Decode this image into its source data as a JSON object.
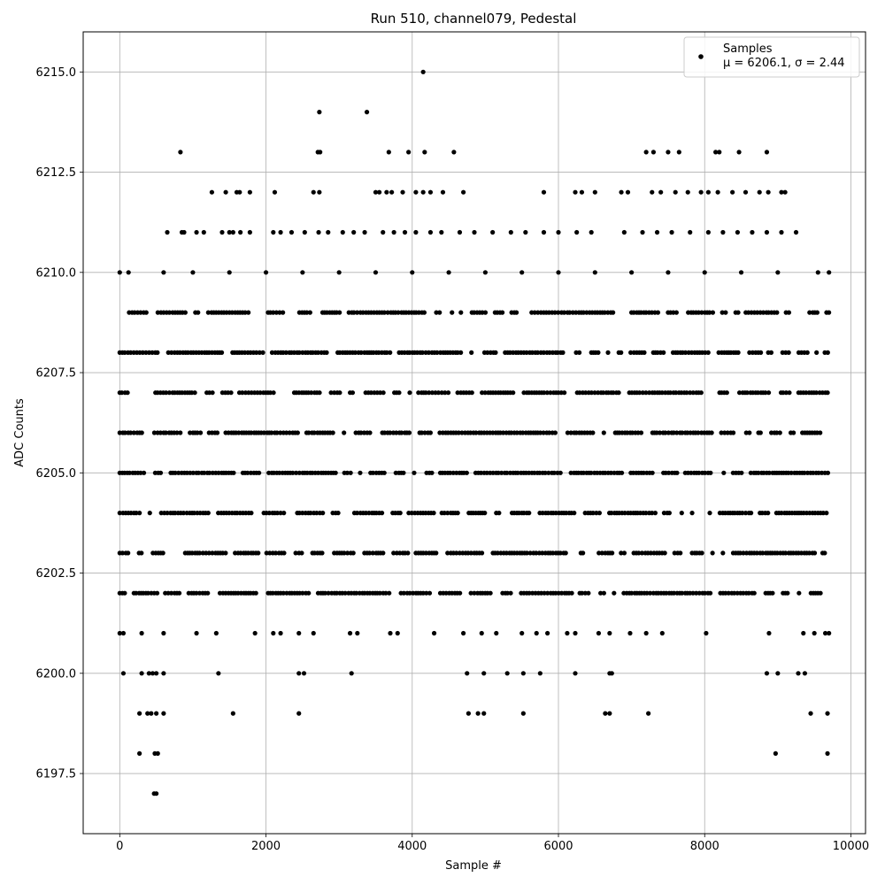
{
  "chart_data": {
    "type": "scatter",
    "title": "Run 510, channel079, Pedestal",
    "xlabel": "Sample #",
    "ylabel": "ADC Counts",
    "xlim": [
      -500,
      10200
    ],
    "ylim": [
      6196.0,
      6216.0
    ],
    "x_ticks": [
      0,
      2000,
      4000,
      6000,
      8000,
      10000
    ],
    "x_tick_labels": [
      "0",
      "2000",
      "4000",
      "6000",
      "8000",
      "10000"
    ],
    "y_ticks": [
      6197.5,
      6200.0,
      6202.5,
      6205.0,
      6207.5,
      6210.0,
      6212.5,
      6215.0
    ],
    "y_tick_labels": [
      "6197.5",
      "6200.0",
      "6202.5",
      "6205.0",
      "6207.5",
      "6210.0",
      "6212.5",
      "6215.0"
    ],
    "grid": true,
    "marker_color": "#000000",
    "legend": {
      "placement": "top-right",
      "entries": [
        {
          "label": "Samples",
          "stat_line": "μ = 6206.1, σ = 2.44"
        }
      ]
    },
    "series": [
      {
        "name": "Samples",
        "n_points": 9700,
        "points": [
          [
            4150,
            6215
          ],
          [
            2730,
            6214
          ],
          [
            3380,
            6214
          ],
          [
            830,
            6213
          ],
          [
            2710,
            6213
          ],
          [
            2740,
            6213
          ],
          [
            3680,
            6213
          ],
          [
            3950,
            6213
          ],
          [
            4170,
            6213
          ],
          [
            4570,
            6213
          ],
          [
            7200,
            6213
          ],
          [
            7300,
            6213
          ],
          [
            7500,
            6213
          ],
          [
            7650,
            6213
          ],
          [
            8150,
            6213
          ],
          [
            8200,
            6213
          ],
          [
            8470,
            6213
          ],
          [
            8850,
            6213
          ],
          [
            1260,
            6212
          ],
          [
            1450,
            6212
          ],
          [
            1600,
            6212
          ],
          [
            1640,
            6212
          ],
          [
            1780,
            6212
          ],
          [
            2120,
            6212
          ],
          [
            2650,
            6212
          ],
          [
            2730,
            6212
          ],
          [
            3500,
            6212
          ],
          [
            3550,
            6212
          ],
          [
            3650,
            6212
          ],
          [
            3720,
            6212
          ],
          [
            3870,
            6212
          ],
          [
            4050,
            6212
          ],
          [
            4150,
            6212
          ],
          [
            4250,
            6212
          ],
          [
            4420,
            6212
          ],
          [
            4700,
            6212
          ],
          [
            5800,
            6212
          ],
          [
            6230,
            6212
          ],
          [
            6320,
            6212
          ],
          [
            6500,
            6212
          ],
          [
            6860,
            6212
          ],
          [
            6950,
            6212
          ],
          [
            7280,
            6212
          ],
          [
            7400,
            6212
          ],
          [
            7600,
            6212
          ],
          [
            7770,
            6212
          ],
          [
            7950,
            6212
          ],
          [
            8050,
            6212
          ],
          [
            8180,
            6212
          ],
          [
            8380,
            6212
          ],
          [
            8560,
            6212
          ],
          [
            8750,
            6212
          ],
          [
            8870,
            6212
          ],
          [
            9050,
            6212
          ],
          [
            9100,
            6212
          ],
          [
            650,
            6211
          ],
          [
            850,
            6211
          ],
          [
            880,
            6211
          ],
          [
            1050,
            6211
          ],
          [
            1150,
            6211
          ],
          [
            1400,
            6211
          ],
          [
            1500,
            6211
          ],
          [
            1550,
            6211
          ],
          [
            1650,
            6211
          ],
          [
            1780,
            6211
          ],
          [
            2100,
            6211
          ],
          [
            2200,
            6211
          ],
          [
            2350,
            6211
          ],
          [
            2530,
            6211
          ],
          [
            2720,
            6211
          ],
          [
            2850,
            6211
          ],
          [
            3050,
            6211
          ],
          [
            3200,
            6211
          ],
          [
            3350,
            6211
          ],
          [
            3600,
            6211
          ],
          [
            3750,
            6211
          ],
          [
            3900,
            6211
          ],
          [
            4050,
            6211
          ],
          [
            4250,
            6211
          ],
          [
            4400,
            6211
          ],
          [
            4650,
            6211
          ],
          [
            4850,
            6211
          ],
          [
            5100,
            6211
          ],
          [
            5350,
            6211
          ],
          [
            5550,
            6211
          ],
          [
            5800,
            6211
          ],
          [
            6000,
            6211
          ],
          [
            6250,
            6211
          ],
          [
            6450,
            6211
          ],
          [
            6900,
            6211
          ],
          [
            7150,
            6211
          ],
          [
            7350,
            6211
          ],
          [
            7550,
            6211
          ],
          [
            7800,
            6211
          ],
          [
            8050,
            6211
          ],
          [
            8250,
            6211
          ],
          [
            8450,
            6211
          ],
          [
            8650,
            6211
          ],
          [
            8850,
            6211
          ],
          [
            9050,
            6211
          ],
          [
            9250,
            6211
          ],
          [
            0,
            6210
          ],
          [
            120,
            6210
          ],
          [
            600,
            6210
          ],
          [
            1000,
            6210
          ],
          [
            1500,
            6210
          ],
          [
            2000,
            6210
          ],
          [
            2500,
            6210
          ],
          [
            3000,
            6210
          ],
          [
            3500,
            6210
          ],
          [
            4000,
            6210
          ],
          [
            4500,
            6210
          ],
          [
            5000,
            6210
          ],
          [
            5500,
            6210
          ],
          [
            6000,
            6210
          ],
          [
            6500,
            6210
          ],
          [
            7000,
            6210
          ],
          [
            7500,
            6210
          ],
          [
            8000,
            6210
          ],
          [
            8500,
            6210
          ],
          [
            9000,
            6210
          ],
          [
            9550,
            6210
          ],
          [
            9700,
            6210
          ],
          [
            0,
            6201
          ],
          [
            50,
            6201
          ],
          [
            300,
            6201
          ],
          [
            600,
            6201
          ],
          [
            1050,
            6201
          ],
          [
            1320,
            6201
          ],
          [
            1850,
            6201
          ],
          [
            2100,
            6201
          ],
          [
            2200,
            6201
          ],
          [
            2450,
            6201
          ],
          [
            2650,
            6201
          ],
          [
            3150,
            6201
          ],
          [
            3250,
            6201
          ],
          [
            3700,
            6201
          ],
          [
            3800,
            6201
          ],
          [
            4300,
            6201
          ],
          [
            4700,
            6201
          ],
          [
            4950,
            6201
          ],
          [
            5150,
            6201
          ],
          [
            5500,
            6201
          ],
          [
            5700,
            6201
          ],
          [
            5850,
            6201
          ],
          [
            6120,
            6201
          ],
          [
            6230,
            6201
          ],
          [
            6550,
            6201
          ],
          [
            6700,
            6201
          ],
          [
            6980,
            6201
          ],
          [
            7200,
            6201
          ],
          [
            7420,
            6201
          ],
          [
            8020,
            6201
          ],
          [
            8880,
            6201
          ],
          [
            9350,
            6201
          ],
          [
            9500,
            6201
          ],
          [
            9650,
            6201
          ],
          [
            9700,
            6201
          ],
          [
            50,
            6200
          ],
          [
            300,
            6200
          ],
          [
            400,
            6200
          ],
          [
            450,
            6200
          ],
          [
            500,
            6200
          ],
          [
            600,
            6200
          ],
          [
            1350,
            6200
          ],
          [
            2450,
            6200
          ],
          [
            2520,
            6200
          ],
          [
            3170,
            6200
          ],
          [
            4750,
            6200
          ],
          [
            4980,
            6200
          ],
          [
            5300,
            6200
          ],
          [
            5520,
            6200
          ],
          [
            5750,
            6200
          ],
          [
            6230,
            6200
          ],
          [
            6700,
            6200
          ],
          [
            6730,
            6200
          ],
          [
            8850,
            6200
          ],
          [
            9000,
            6200
          ],
          [
            9280,
            6200
          ],
          [
            9370,
            6200
          ],
          [
            270,
            6199
          ],
          [
            380,
            6199
          ],
          [
            430,
            6199
          ],
          [
            500,
            6199
          ],
          [
            600,
            6199
          ],
          [
            1550,
            6199
          ],
          [
            2450,
            6199
          ],
          [
            4770,
            6199
          ],
          [
            4900,
            6199
          ],
          [
            4980,
            6199
          ],
          [
            5520,
            6199
          ],
          [
            6640,
            6199
          ],
          [
            6700,
            6199
          ],
          [
            7230,
            6199
          ],
          [
            9450,
            6199
          ],
          [
            9680,
            6199
          ],
          [
            270,
            6198
          ],
          [
            480,
            6198
          ],
          [
            520,
            6198
          ],
          [
            8970,
            6198
          ],
          [
            9680,
            6198
          ],
          [
            470,
            6197
          ],
          [
            500,
            6197
          ]
        ],
        "dense_levels": [
          {
            "y": 6209,
            "x_range": [
              0,
              9700
            ]
          },
          {
            "y": 6208,
            "x_range": [
              0,
              9700
            ]
          },
          {
            "y": 6207,
            "x_range": [
              0,
              9700
            ]
          },
          {
            "y": 6206,
            "x_range": [
              0,
              9700
            ]
          },
          {
            "y": 6205,
            "x_range": [
              0,
              9700
            ]
          },
          {
            "y": 6204,
            "x_range": [
              0,
              9700
            ]
          },
          {
            "y": 6203,
            "x_range": [
              0,
              9700
            ]
          },
          {
            "y": 6202,
            "x_range": [
              0,
              9700
            ]
          }
        ]
      }
    ]
  }
}
